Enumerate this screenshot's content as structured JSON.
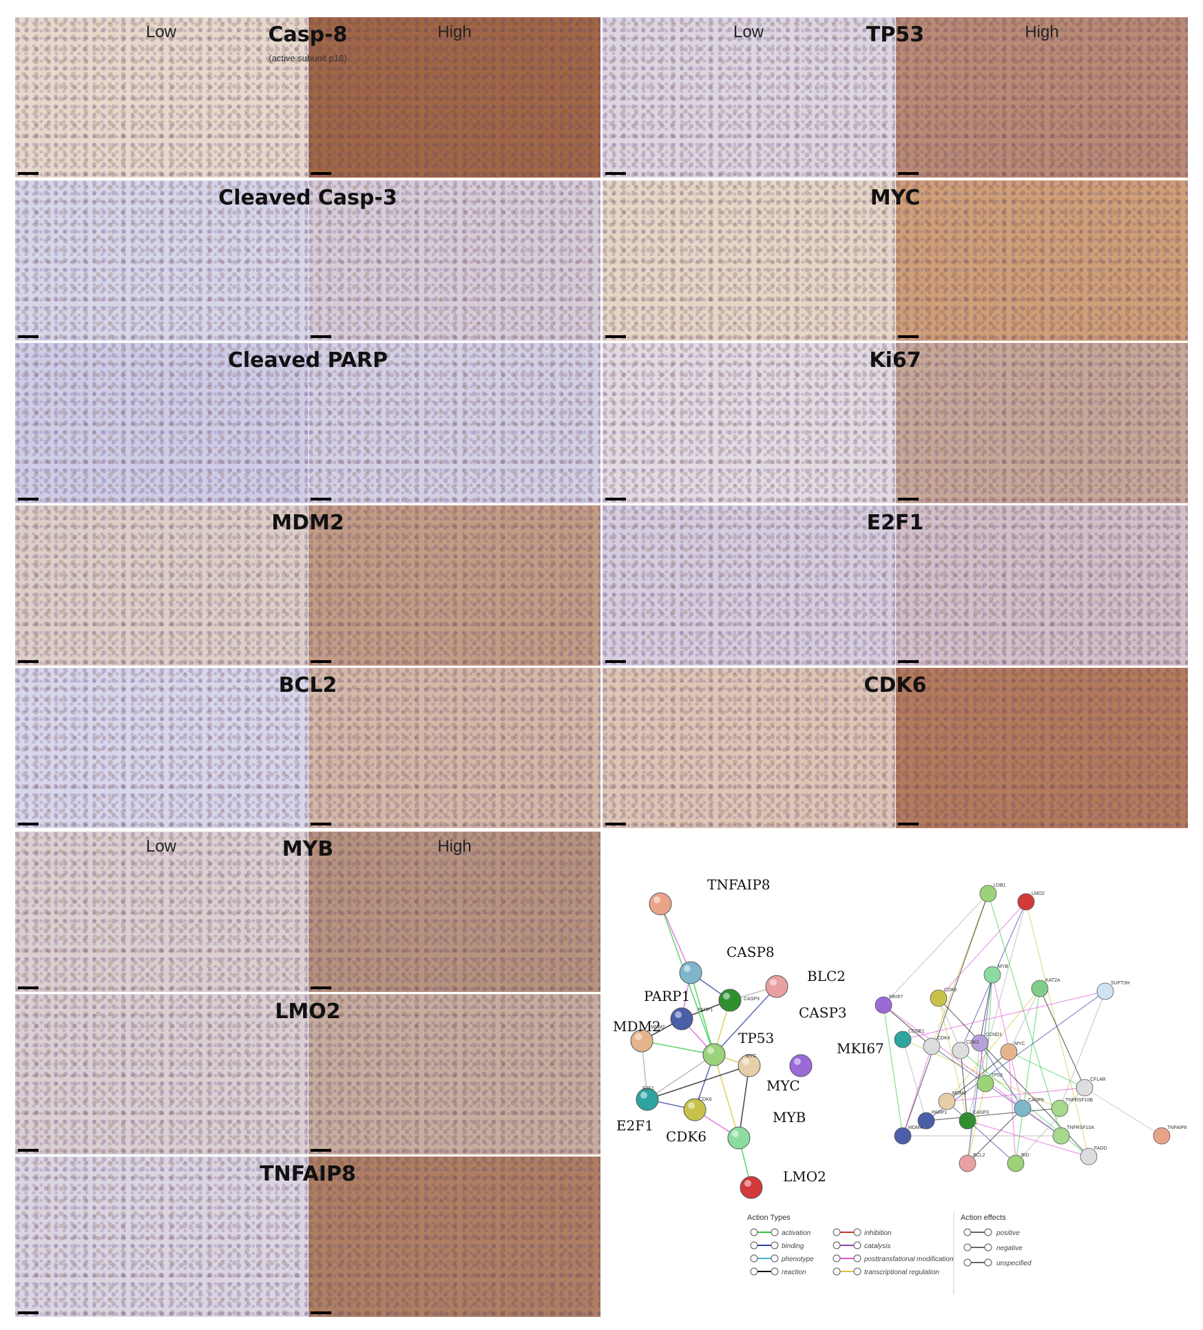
{
  "low_label": "Low",
  "high_label": "High",
  "casp8_note": "(active subunit p18)",
  "panels": [
    {
      "label": "Casp-8",
      "show_low_high": true,
      "low": "#e6d8cb",
      "high": "#a06646"
    },
    {
      "label": "TP53",
      "show_low_high": true,
      "low": "#ddd6e0",
      "high": "#b98a74"
    },
    {
      "label": "Cleaved Casp-3",
      "show_low_high": false,
      "low": "#d7d6e8",
      "high": "#d7cdd8"
    },
    {
      "label": "MYC",
      "show_low_high": false,
      "low": "#e6d6c6",
      "high": "#cf9f78"
    },
    {
      "label": "Cleaved PARP",
      "show_low_high": false,
      "low": "#cfcde6",
      "high": "#d4d0e4"
    },
    {
      "label": "Ki67",
      "show_low_high": false,
      "low": "#e2dbe2",
      "high": "#c7a898"
    },
    {
      "label": "MDM2",
      "show_low_high": false,
      "low": "#ddcfc8",
      "high": "#c39c85"
    },
    {
      "label": "E2F1",
      "show_low_high": false,
      "low": "#d6cedf",
      "high": "#d2bfc8"
    },
    {
      "label": "BCL2",
      "show_low_high": false,
      "low": "#d8d6ea",
      "high": "#d4b8a8"
    },
    {
      "label": "CDK6",
      "show_low_high": false,
      "low": "#dec6b6",
      "high": "#b47a5c"
    },
    {
      "label": "MYB",
      "show_low_high": true,
      "low": "#dccfd0",
      "high": "#b7937f"
    },
    {
      "label": "LMO2",
      "show_low_high": false,
      "low": "#dacfd2",
      "high": "#c6ad9e"
    },
    {
      "label": "TNFAIP8",
      "show_low_high": false,
      "low": "#dbd5e2",
      "high": "#ae7f63"
    }
  ],
  "network_left": {
    "nodes": [
      {
        "id": "TNFAIP8",
        "color": "#e8a488",
        "label": "TNFAIP8",
        "big": true
      },
      {
        "id": "CASP8",
        "color": "#7fb6c9",
        "label": "CASP8",
        "big": true
      },
      {
        "id": "BLC2",
        "color": "#e8a0a0",
        "label": "BLC2",
        "big": true
      },
      {
        "id": "PARP1",
        "color": "#4b5fa8",
        "label": "PARP1",
        "big": true
      },
      {
        "id": "CASP3",
        "color": "#2f8f2f",
        "label": "CASP3",
        "big": true
      },
      {
        "id": "MDM2",
        "color": "#e6b48c",
        "label": "MDM2",
        "big": true
      },
      {
        "id": "TP53",
        "color": "#9bd27a",
        "label": "TP53",
        "big": true
      },
      {
        "id": "MYC",
        "color": "#e6cfa8",
        "label": "MYC",
        "big": true
      },
      {
        "id": "MKI67",
        "color": "#9a6ad8",
        "label": "MKI67",
        "big": true
      },
      {
        "id": "E2F1",
        "color": "#2fa3a0",
        "label": "E2F1",
        "big": true
      },
      {
        "id": "CDK6",
        "color": "#c8c24a",
        "label": "CDK6",
        "big": true
      },
      {
        "id": "MYB",
        "color": "#8cdca0",
        "label": "MYB",
        "big": true
      },
      {
        "id": "LMO2",
        "color": "#d23a3a",
        "label": "LMO2",
        "big": true
      }
    ],
    "small_labels": [
      "MDM2",
      "PARP1",
      "CASP3",
      "MYC",
      "E2F1",
      "CDK6"
    ]
  },
  "network_right": {
    "labels": [
      "LDB1",
      "LMO2",
      "MYB",
      "KAT2A",
      "SUPT3H",
      "MKI67",
      "CDK6",
      "CCND1",
      "MYC",
      "CCNE1",
      "CDK4",
      "CDK2",
      "TP53",
      "MDM2",
      "PARP1",
      "MDM4",
      "CASP3",
      "CASP8",
      "CFLAR",
      "TNFRSF10B",
      "TNFRSF10A",
      "FADD",
      "BCL2",
      "BID",
      "TNFAIP8"
    ]
  },
  "legend": {
    "action_types_title": "Action Types",
    "action_effects_title": "Action effects",
    "types": [
      {
        "label": "activation",
        "color": "#2ecc40"
      },
      {
        "label": "inhibition",
        "color": "#c0392b"
      },
      {
        "label": "binding",
        "color": "#2c3e9a"
      },
      {
        "label": "catalysis",
        "color": "#8e44ad"
      },
      {
        "label": "phenotype",
        "color": "#3fb6d6"
      },
      {
        "label": "posttransfational modification",
        "color": "#e056d6"
      },
      {
        "label": "reaction",
        "color": "#111111"
      },
      {
        "label": "transcriptional regulation",
        "color": "#d4c23a"
      }
    ],
    "effects": [
      "positive",
      "negative",
      "unspecified"
    ]
  }
}
